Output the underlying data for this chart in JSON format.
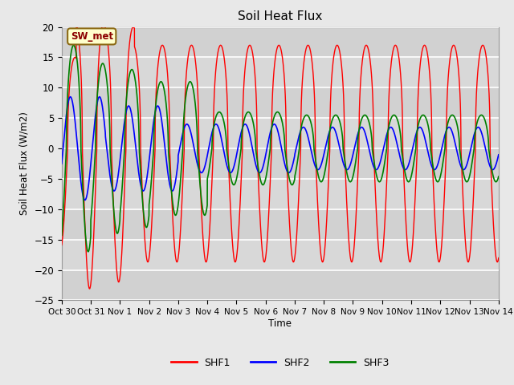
{
  "title": "Soil Heat Flux",
  "ylabel": "Soil Heat Flux (W/m2)",
  "xlabel": "Time",
  "xlabels": [
    "Oct 30",
    "Oct 31",
    "Nov 1",
    "Nov 2",
    "Nov 3",
    "Nov 4",
    "Nov 5",
    "Nov 6",
    "Nov 7",
    "Nov 8",
    "Nov 9",
    "Nov 10",
    "Nov 11",
    "Nov 12",
    "Nov 13",
    "Nov 14"
  ],
  "ylim": [
    -25,
    20
  ],
  "yticks": [
    -25,
    -20,
    -15,
    -10,
    -5,
    0,
    5,
    10,
    15,
    20
  ],
  "background_color": "#e8e8e8",
  "plot_bg_color": "#d8d8d8",
  "grid_color": "#f0f0f0",
  "legend_label": "SW_met",
  "shf1_color": "red",
  "shf2_color": "blue",
  "shf3_color": "green",
  "n_days": 15,
  "pts_per_day": 288
}
